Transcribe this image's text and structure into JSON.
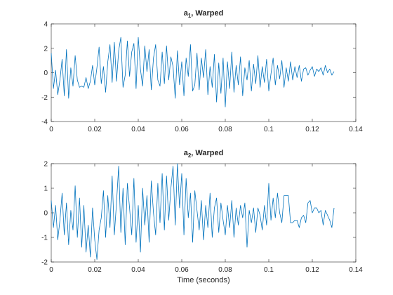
{
  "chart_data": [
    {
      "type": "line",
      "title": "a",
      "title_subscript": "1",
      "title_suffix": ", Warped",
      "xlabel": "",
      "ylabel": "",
      "xlim": [
        0,
        0.14
      ],
      "ylim": [
        -4,
        4
      ],
      "xticks": [
        0,
        0.02,
        0.04,
        0.06,
        0.08,
        0.1,
        0.12,
        0.14
      ],
      "xtick_labels": [
        "0",
        "0.02",
        "0.04",
        "0.06",
        "0.08",
        "0.1",
        "0.12",
        "0.14"
      ],
      "yticks": [
        -4,
        -2,
        0,
        2,
        4
      ],
      "ytick_labels": [
        "-4",
        "-2",
        "0",
        "2",
        "4"
      ],
      "grid": false,
      "line_color": "#0072BD",
      "series": [
        {
          "x": [
            0,
            0.001,
            0.002,
            0.003,
            0.004,
            0.005,
            0.006,
            0.007,
            0.008,
            0.009,
            0.01,
            0.011,
            0.012,
            0.013,
            0.014,
            0.015,
            0.016,
            0.017,
            0.018,
            0.019,
            0.02,
            0.021,
            0.022,
            0.023,
            0.024,
            0.025,
            0.026,
            0.027,
            0.028,
            0.029,
            0.03,
            0.031,
            0.032,
            0.033,
            0.034,
            0.035,
            0.036,
            0.037,
            0.038,
            0.039,
            0.04,
            0.041,
            0.042,
            0.043,
            0.044,
            0.045,
            0.046,
            0.047,
            0.048,
            0.049,
            0.05,
            0.051,
            0.052,
            0.053,
            0.054,
            0.055,
            0.056,
            0.057,
            0.058,
            0.059,
            0.06,
            0.061,
            0.062,
            0.063,
            0.064,
            0.065,
            0.066,
            0.067,
            0.068,
            0.069,
            0.07,
            0.071,
            0.072,
            0.073,
            0.074,
            0.075,
            0.076,
            0.077,
            0.078,
            0.079,
            0.08,
            0.081,
            0.082,
            0.083,
            0.084,
            0.085,
            0.086,
            0.087,
            0.088,
            0.089,
            0.09,
            0.091,
            0.092,
            0.093,
            0.094,
            0.095,
            0.096,
            0.097,
            0.098,
            0.099,
            0.1,
            0.101,
            0.102,
            0.103,
            0.104,
            0.105,
            0.106,
            0.107,
            0.108,
            0.109,
            0.11,
            0.111,
            0.112,
            0.113,
            0.114,
            0.115,
            0.116,
            0.117,
            0.118,
            0.119,
            0.12,
            0.121,
            0.122,
            0.123,
            0.124,
            0.125,
            0.126,
            0.127,
            0.128,
            0.129,
            0.13
          ],
          "y": [
            1.6,
            -1.3,
            0.2,
            -1.8,
            -0.6,
            1.1,
            -1.9,
            1.9,
            -2.1,
            0.4,
            -1.1,
            1.4,
            -0.6,
            -1.2,
            -1.1,
            -1.2,
            -0.4,
            -1.3,
            -0.7,
            0.6,
            -1.0,
            0.4,
            2.1,
            -0.9,
            0.5,
            -1.6,
            0.9,
            2.3,
            -0.8,
            2.5,
            -0.7,
            1.8,
            2.9,
            -1.2,
            -0.2,
            2.6,
            -0.3,
            1.7,
            2.4,
            -1.3,
            2.9,
            0.3,
            -1.1,
            2.2,
            0.1,
            1.9,
            -1.4,
            1.2,
            2.3,
            -0.6,
            -1.1,
            1.7,
            -0.9,
            2.2,
            -0.6,
            1.3,
            0.5,
            -2.1,
            1.8,
            -1.0,
            0.9,
            -1.9,
            1.2,
            -0.3,
            2.3,
            -1.5,
            -1.0,
            1.6,
            -1.4,
            1.2,
            -0.4,
            1.9,
            -1.8,
            0.5,
            -1.2,
            1.5,
            -2.4,
            0.8,
            -1.7,
            1.2,
            -2.8,
            0.9,
            -1.3,
            1.7,
            -1.6,
            0.6,
            -1.0,
            1.3,
            -1.9,
            0.4,
            -0.6,
            1.0,
            -1.5,
            0.7,
            -0.9,
            1.4,
            -1.2,
            0.5,
            -0.8,
            1.1,
            -1.5,
            -0.1,
            1.2,
            -1.0,
            0.6,
            -0.5,
            1.0,
            -1.2,
            0.4,
            -0.7,
            0.9,
            -0.6,
            0.5,
            -0.4,
            0.6,
            -0.7,
            0.3,
            0.4,
            -0.2,
            0.2,
            0.5,
            -0.3,
            0.3,
            0.1,
            0.4,
            -0.2,
            0.6,
            0.0,
            0.3,
            -0.2,
            0.1
          ]
        }
      ]
    },
    {
      "type": "line",
      "title": "a",
      "title_subscript": "2",
      "title_suffix": ", Warped",
      "xlabel": "Time (seconds)",
      "ylabel": "",
      "xlim": [
        0,
        0.14
      ],
      "ylim": [
        -2,
        2
      ],
      "xticks": [
        0,
        0.02,
        0.04,
        0.06,
        0.08,
        0.1,
        0.12,
        0.14
      ],
      "xtick_labels": [
        "0",
        "0.02",
        "0.04",
        "0.06",
        "0.08",
        "0.1",
        "0.12",
        "0.14"
      ],
      "yticks": [
        -2,
        -1,
        0,
        1,
        2
      ],
      "ytick_labels": [
        "-2",
        "-1",
        "0",
        "1",
        "2"
      ],
      "grid": false,
      "line_color": "#0072BD",
      "series": [
        {
          "x": [
            0,
            0.001,
            0.002,
            0.003,
            0.004,
            0.005,
            0.006,
            0.007,
            0.008,
            0.009,
            0.01,
            0.011,
            0.012,
            0.013,
            0.014,
            0.015,
            0.016,
            0.017,
            0.018,
            0.019,
            0.02,
            0.021,
            0.022,
            0.023,
            0.024,
            0.025,
            0.026,
            0.027,
            0.028,
            0.029,
            0.03,
            0.031,
            0.032,
            0.033,
            0.034,
            0.035,
            0.036,
            0.037,
            0.038,
            0.039,
            0.04,
            0.041,
            0.042,
            0.043,
            0.044,
            0.045,
            0.046,
            0.047,
            0.048,
            0.049,
            0.05,
            0.051,
            0.052,
            0.053,
            0.054,
            0.055,
            0.056,
            0.057,
            0.058,
            0.059,
            0.06,
            0.061,
            0.062,
            0.063,
            0.064,
            0.065,
            0.066,
            0.067,
            0.068,
            0.069,
            0.07,
            0.071,
            0.072,
            0.073,
            0.074,
            0.075,
            0.076,
            0.077,
            0.078,
            0.079,
            0.08,
            0.081,
            0.082,
            0.083,
            0.084,
            0.085,
            0.086,
            0.087,
            0.088,
            0.089,
            0.09,
            0.091,
            0.092,
            0.093,
            0.094,
            0.095,
            0.096,
            0.097,
            0.098,
            0.099,
            0.1,
            0.101,
            0.102,
            0.103,
            0.104,
            0.105,
            0.106,
            0.107,
            0.108,
            0.109,
            0.11,
            0.111,
            0.112,
            0.113,
            0.114,
            0.115,
            0.116,
            0.117,
            0.118,
            0.119,
            0.12,
            0.121,
            0.122,
            0.123,
            0.124,
            0.125,
            0.126,
            0.127,
            0.128,
            0.129,
            0.13
          ],
          "y": [
            0.5,
            -0.6,
            0.3,
            -1.1,
            -0.3,
            0.8,
            -0.9,
            0.4,
            -1.3,
            0.1,
            -0.7,
            1.1,
            -1.0,
            0.6,
            -1.4,
            0.3,
            -1.6,
            -0.5,
            -1.8,
            0.2,
            -1.1,
            -1.9,
            -0.7,
            -0.2,
            0.9,
            -1.0,
            0.7,
            -0.6,
            1.5,
            -0.9,
            0.4,
            1.9,
            -0.8,
            1.0,
            -1.3,
            1.2,
            0.2,
            -0.9,
            1.4,
            -1.2,
            0.3,
            -1.6,
            1.0,
            -0.5,
            0.7,
            -1.2,
            1.3,
            0.0,
            -0.9,
            1.2,
            -0.4,
            1.6,
            -0.7,
            1.5,
            -0.3,
            1.0,
            1.9,
            -0.5,
            2.0,
            0.2,
            1.6,
            -0.9,
            1.4,
            -0.2,
            0.8,
            -1.2,
            0.9,
            0.1,
            -0.7,
            0.5,
            -1.1,
            0.3,
            -0.6,
            0.8,
            -1.0,
            0.2,
            0.6,
            -0.8,
            0.4,
            -0.3,
            -0.9,
            0.3,
            -0.6,
            0.5,
            -1.0,
            0.2,
            -0.5,
            0.3,
            -0.2,
            0.4,
            -1.4,
            0.1,
            -0.4,
            0.2,
            -0.8,
            0.2,
            -0.1,
            -0.7,
            0.3,
            -0.5,
            1.2,
            -0.3,
            0.6,
            -0.2,
            0.8,
            0.0,
            -0.4,
            0.7,
            0.7,
            0.7,
            -0.4,
            -0.4,
            -0.3,
            -0.3,
            -0.6,
            -0.2,
            -0.1,
            -0.4,
            0.4,
            0.5,
            0.0,
            0.2,
            0.2,
            0.0,
            0.1,
            -0.5,
            0.1,
            -0.1,
            -0.3,
            -0.6,
            0.2
          ]
        }
      ]
    }
  ]
}
